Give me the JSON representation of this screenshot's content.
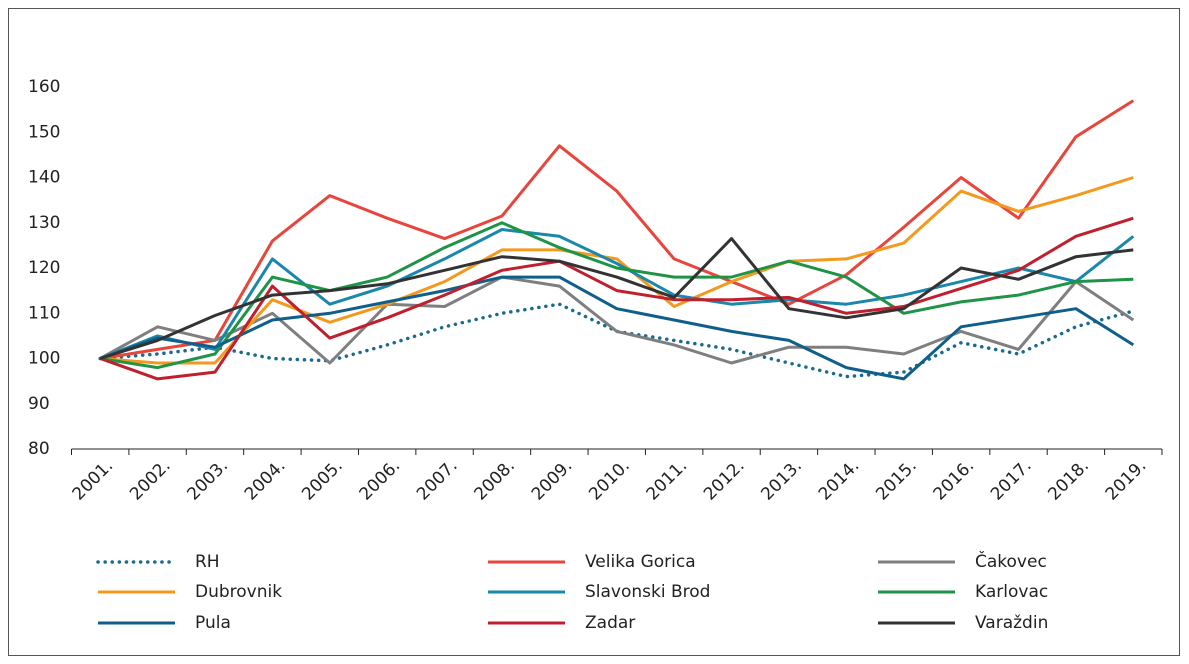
{
  "chart_data": {
    "type": "line",
    "categories": [
      "2001.",
      "2002.",
      "2003.",
      "2004.",
      "2005.",
      "2006.",
      "2007.",
      "2008.",
      "2009.",
      "2010.",
      "2011.",
      "2012.",
      "2013.",
      "2014.",
      "2015.",
      "2016.",
      "2017.",
      "2018.",
      "2019."
    ],
    "ylim": [
      80,
      160
    ],
    "yticks": [
      80,
      90,
      100,
      110,
      120,
      130,
      140,
      150,
      160
    ],
    "grid": false,
    "legend": "bottom",
    "series": [
      {
        "name": "RH",
        "color": "#1b6a92",
        "style": "dotted",
        "values": [
          100,
          101,
          102.5,
          100,
          99.5,
          103,
          107,
          110,
          112,
          106,
          104,
          102,
          99,
          96,
          97,
          103.5,
          101,
          107,
          110.5
        ]
      },
      {
        "name": "Velika Gorica",
        "color": "#e8453c",
        "style": "solid",
        "values": [
          100,
          102,
          104,
          126,
          136,
          131,
          126.5,
          131.5,
          147,
          137,
          122,
          117,
          112,
          118.5,
          129,
          140,
          131,
          149,
          157
        ]
      },
      {
        "name": "Čakovec",
        "color": "#7f7f7f",
        "style": "solid",
        "values": [
          100,
          107,
          104,
          110,
          99,
          112,
          111.5,
          118,
          116,
          106,
          103,
          99,
          102.5,
          102.5,
          101,
          106,
          102,
          117,
          108.5
        ]
      },
      {
        "name": "Dubrovnik",
        "color": "#f39a1e",
        "style": "solid",
        "values": [
          100,
          99,
          99,
          113,
          108,
          112,
          117,
          124,
          124,
          122,
          111.5,
          117,
          121.5,
          122,
          125.5,
          137,
          132.5,
          136,
          140
        ]
      },
      {
        "name": "Slavonski Brod",
        "color": "#1a87ab",
        "style": "solid",
        "values": [
          100,
          105,
          102,
          122,
          112,
          116,
          122,
          128.5,
          127,
          121,
          114,
          112,
          113,
          112,
          114,
          117,
          120,
          117,
          127
        ]
      },
      {
        "name": "Karlovac",
        "color": "#1e9447",
        "style": "solid",
        "values": [
          100,
          98,
          101,
          118,
          115,
          118,
          124.5,
          130,
          124.5,
          120,
          118,
          118,
          121.5,
          118,
          110,
          112.5,
          114,
          117,
          117.5
        ]
      },
      {
        "name": "Pula",
        "color": "#0f5f8a",
        "style": "solid",
        "values": [
          100,
          104.5,
          102.5,
          108.5,
          110,
          112.5,
          115,
          118,
          118,
          111,
          108.5,
          106,
          104,
          98,
          95.5,
          107,
          109,
          111,
          103
        ]
      },
      {
        "name": "Zadar",
        "color": "#c0202e",
        "style": "solid",
        "values": [
          100,
          95.5,
          97,
          116,
          104.5,
          109,
          114,
          119.5,
          121.5,
          115,
          113,
          113,
          113.5,
          110,
          111.5,
          115.5,
          119.5,
          127,
          131
        ]
      },
      {
        "name": "Varaždin",
        "color": "#333333",
        "style": "solid",
        "values": [
          100,
          104,
          109.5,
          114,
          115,
          116.5,
          119.5,
          122.5,
          121.5,
          118,
          113.5,
          126.5,
          111,
          109,
          111,
          120,
          117.5,
          122.5,
          124
        ]
      }
    ]
  }
}
